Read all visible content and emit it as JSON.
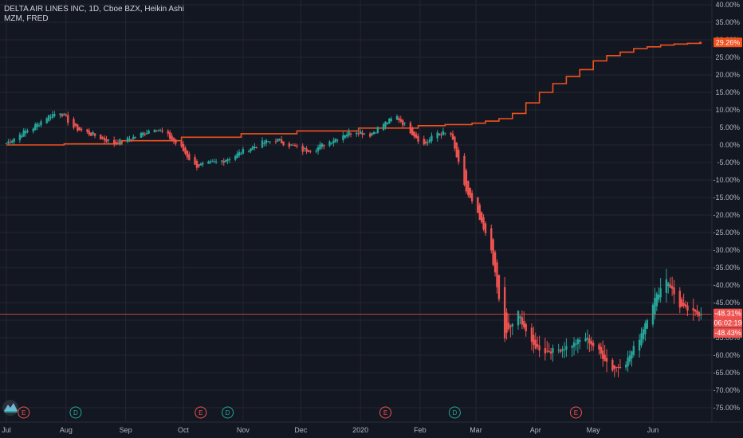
{
  "legend": {
    "symbol": "DELTA AIR LINES INC, 1D, Cboe BZX, Heikin Ashi",
    "compare": "MZM, FRED"
  },
  "colors": {
    "background": "#131722",
    "grid": "#242733",
    "up": "#26a69a",
    "down": "#ef5350",
    "compare_line": "#f2511c",
    "axis_text": "#b2b5be"
  },
  "chart_data": {
    "type": "candlestick",
    "yunit": "%",
    "ylim": [
      -78,
      41
    ],
    "yticks": [
      40,
      35,
      30,
      25,
      20,
      15,
      10,
      5,
      0,
      -5,
      -10,
      -15,
      -20,
      -25,
      -30,
      -35,
      -40,
      -45,
      -50,
      -55,
      -60,
      -65,
      -70,
      -75
    ],
    "ytick_labels": [
      "40.00%",
      "35.00%",
      "30.00%",
      "25.00%",
      "20.00%",
      "15.00%",
      "10.00%",
      "5.00%",
      "0.00%",
      "-5.00%",
      "-10.00%",
      "-15.00%",
      "-20.00%",
      "-25.00%",
      "-30.00%",
      "-35.00%",
      "-40.00%",
      "-45.00%",
      "-50.00%",
      "-55.00%",
      "-60.00%",
      "-65.00%",
      "-70.00%",
      "-75.00%"
    ],
    "xlim": [
      "2019-07-01",
      "2020-06-30"
    ],
    "xticks": [
      {
        "date": "2019-07-01",
        "label": "Jul"
      },
      {
        "date": "2019-08-01",
        "label": "Aug"
      },
      {
        "date": "2019-09-01",
        "label": "Sep"
      },
      {
        "date": "2019-10-01",
        "label": "Oct"
      },
      {
        "date": "2019-11-01",
        "label": "Nov"
      },
      {
        "date": "2019-12-01",
        "label": "Dec"
      },
      {
        "date": "2020-01-01",
        "label": "2020"
      },
      {
        "date": "2020-02-01",
        "label": "Feb"
      },
      {
        "date": "2020-03-01",
        "label": "Mar"
      },
      {
        "date": "2020-04-01",
        "label": "Apr"
      },
      {
        "date": "2020-05-01",
        "label": "May"
      },
      {
        "date": "2020-06-01",
        "label": "Jun"
      }
    ],
    "series": [
      {
        "name": "DELTA AIR LINES INC",
        "kind": "heikin-ashi",
        "points": [
          [
            "2019-07-01",
            0.5
          ],
          [
            "2019-07-08",
            3.0
          ],
          [
            "2019-07-15",
            5.0
          ],
          [
            "2019-07-22",
            8.0
          ],
          [
            "2019-07-29",
            9.5
          ],
          [
            "2019-08-05",
            5.0
          ],
          [
            "2019-08-12",
            3.5
          ],
          [
            "2019-08-19",
            2.0
          ],
          [
            "2019-08-26",
            0.5
          ],
          [
            "2019-09-02",
            1.5
          ],
          [
            "2019-09-09",
            3.0
          ],
          [
            "2019-09-16",
            5.0
          ],
          [
            "2019-09-23",
            2.5
          ],
          [
            "2019-09-30",
            -1.0
          ],
          [
            "2019-10-07",
            -6.0
          ],
          [
            "2019-10-14",
            -5.5
          ],
          [
            "2019-10-21",
            -4.5
          ],
          [
            "2019-10-28",
            -3.0
          ],
          [
            "2019-11-04",
            -1.0
          ],
          [
            "2019-11-11",
            0.5
          ],
          [
            "2019-11-18",
            1.5
          ],
          [
            "2019-11-25",
            0.0
          ],
          [
            "2019-12-02",
            -1.5
          ],
          [
            "2019-12-09",
            -1.0
          ],
          [
            "2019-12-16",
            1.0
          ],
          [
            "2019-12-23",
            3.0
          ],
          [
            "2019-12-30",
            4.0
          ],
          [
            "2020-01-06",
            3.0
          ],
          [
            "2020-01-13",
            6.0
          ],
          [
            "2020-01-20",
            8.0
          ],
          [
            "2020-01-27",
            4.0
          ],
          [
            "2020-02-03",
            0.0
          ],
          [
            "2020-02-10",
            3.5
          ],
          [
            "2020-02-17",
            3.0
          ],
          [
            "2020-02-24",
            -12.0
          ],
          [
            "2020-03-02",
            -20.0
          ],
          [
            "2020-03-09",
            -30.0
          ],
          [
            "2020-03-16",
            -55.0
          ],
          [
            "2020-03-23",
            -48.0
          ],
          [
            "2020-03-30",
            -57.0
          ],
          [
            "2020-04-06",
            -59.0
          ],
          [
            "2020-04-13",
            -58.5
          ],
          [
            "2020-04-20",
            -57.0
          ],
          [
            "2020-04-27",
            -55.0
          ],
          [
            "2020-05-04",
            -59.0
          ],
          [
            "2020-05-11",
            -64.0
          ],
          [
            "2020-05-18",
            -62.0
          ],
          [
            "2020-05-25",
            -55.0
          ],
          [
            "2020-06-01",
            -45.0
          ],
          [
            "2020-06-08",
            -38.0
          ],
          [
            "2020-06-15",
            -46.0
          ],
          [
            "2020-06-22",
            -48.0
          ],
          [
            "2020-06-26",
            -48.3
          ]
        ]
      },
      {
        "name": "MZM, FRED",
        "kind": "line",
        "points": [
          [
            "2019-07-01",
            0.0
          ],
          [
            "2019-07-31",
            0.3
          ],
          [
            "2019-08-30",
            1.2
          ],
          [
            "2019-09-30",
            2.2
          ],
          [
            "2019-10-31",
            3.2
          ],
          [
            "2019-11-29",
            4.0
          ],
          [
            "2019-12-31",
            4.8
          ],
          [
            "2020-01-31",
            5.5
          ],
          [
            "2020-02-14",
            5.8
          ],
          [
            "2020-02-28",
            6.2
          ],
          [
            "2020-03-06",
            6.8
          ],
          [
            "2020-03-13",
            7.5
          ],
          [
            "2020-03-20",
            9.0
          ],
          [
            "2020-03-27",
            12.0
          ],
          [
            "2020-04-03",
            15.0
          ],
          [
            "2020-04-10",
            17.5
          ],
          [
            "2020-04-17",
            19.5
          ],
          [
            "2020-04-24",
            21.5
          ],
          [
            "2020-05-01",
            24.0
          ],
          [
            "2020-05-08",
            25.5
          ],
          [
            "2020-05-15",
            26.5
          ],
          [
            "2020-05-22",
            27.5
          ],
          [
            "2020-05-29",
            28.0
          ],
          [
            "2020-06-05",
            28.5
          ],
          [
            "2020-06-12",
            28.8
          ],
          [
            "2020-06-19",
            29.0
          ],
          [
            "2020-06-26",
            29.26
          ]
        ]
      }
    ],
    "badges": {
      "compare_last": "29.26%",
      "price_last": "-48.31%",
      "countdown": "06:02:19",
      "price_prev": "-48.43%"
    },
    "events": [
      {
        "date": "2019-07-10",
        "letter": "E",
        "kind": "earnings"
      },
      {
        "date": "2019-08-06",
        "letter": "D",
        "kind": "dividend"
      },
      {
        "date": "2019-10-10",
        "letter": "E",
        "kind": "earnings"
      },
      {
        "date": "2019-10-24",
        "letter": "D",
        "kind": "dividend"
      },
      {
        "date": "2020-01-14",
        "letter": "E",
        "kind": "earnings"
      },
      {
        "date": "2020-02-19",
        "letter": "D",
        "kind": "dividend"
      },
      {
        "date": "2020-04-22",
        "letter": "E",
        "kind": "earnings"
      }
    ]
  }
}
